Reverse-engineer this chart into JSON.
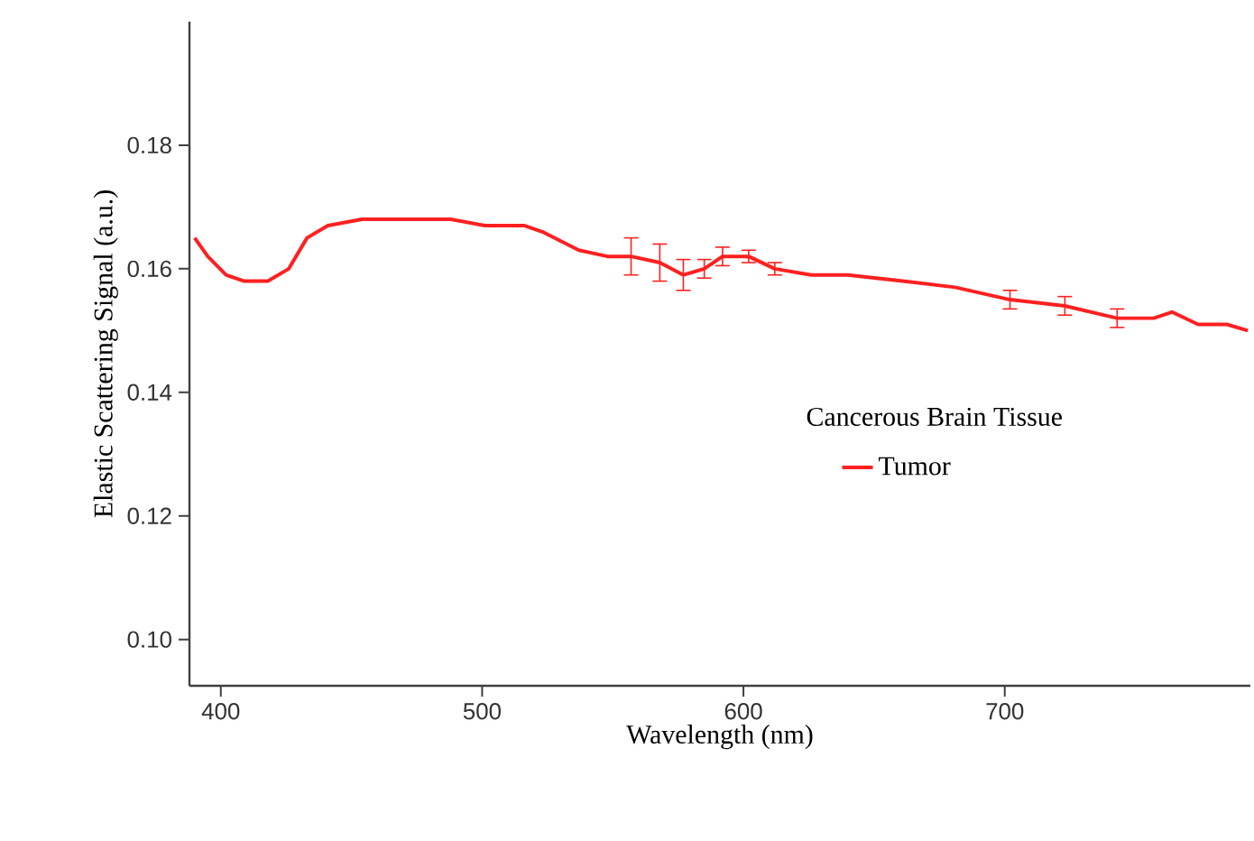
{
  "chart_data": {
    "type": "line",
    "xlabel": "Wavelength (nm)",
    "ylabel": "Elastic Scattering Signal (a.u.)",
    "legend_title": "Cancerous Brain Tissue",
    "xlim": [
      388,
      794
    ],
    "ylim": [
      0.0925,
      0.2
    ],
    "xticks": [
      400,
      500,
      600,
      700
    ],
    "yticks": [
      {
        "value": 0.1,
        "label": "0.10"
      },
      {
        "value": 0.12,
        "label": "0.12"
      },
      {
        "value": 0.14,
        "label": "0.14"
      },
      {
        "value": 0.16,
        "label": "0.16"
      },
      {
        "value": 0.18,
        "label": "0.18"
      }
    ],
    "grid": false,
    "legend": "right",
    "marker": "none",
    "line_style": "solid",
    "series": [
      {
        "name": "Tumor",
        "color": "#ff2020",
        "x": [
          390,
          395,
          402,
          409,
          418,
          426,
          433,
          441,
          454,
          474,
          488,
          501,
          516,
          523,
          537,
          548,
          557,
          568,
          577,
          585,
          592,
          602,
          612,
          626,
          640,
          661,
          681,
          702,
          723,
          743,
          757,
          764,
          774,
          785,
          793
        ],
        "values": [
          0.165,
          0.162,
          0.159,
          0.158,
          0.158,
          0.16,
          0.165,
          0.167,
          0.168,
          0.168,
          0.168,
          0.167,
          0.167,
          0.166,
          0.163,
          0.162,
          0.162,
          0.161,
          0.159,
          0.16,
          0.162,
          0.162,
          0.16,
          0.159,
          0.159,
          0.158,
          0.157,
          0.155,
          0.154,
          0.152,
          0.152,
          0.153,
          0.151,
          0.151,
          0.15
        ],
        "errors": [
          null,
          null,
          null,
          null,
          null,
          null,
          null,
          null,
          null,
          null,
          null,
          null,
          null,
          null,
          null,
          null,
          0.003,
          0.003,
          0.0025,
          0.0015,
          0.0015,
          0.001,
          0.001,
          null,
          null,
          null,
          null,
          0.0015,
          0.0015,
          0.0015,
          null,
          null,
          null,
          null,
          null
        ]
      }
    ]
  }
}
